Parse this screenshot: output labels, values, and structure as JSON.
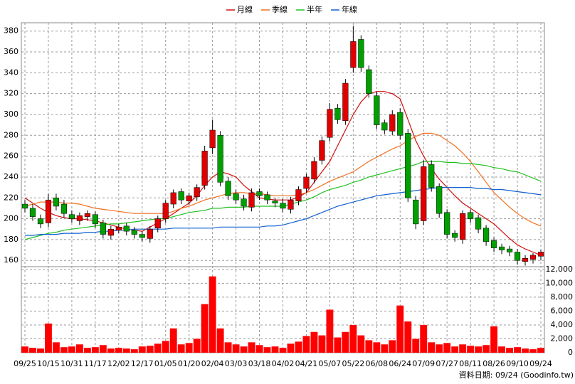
{
  "chart_data": {
    "type": "candlestick",
    "legend": "top",
    "grid": true,
    "up_color": "#e00000",
    "down_color": "#00a000",
    "wick_color": "#000000",
    "footer": "資料日期: 09/24 (Goodinfo.tw)",
    "xlim": [
      0,
      66
    ],
    "xticks": [
      {
        "value": 0,
        "label": "09/25"
      },
      {
        "value": 3,
        "label": "10/15"
      },
      {
        "value": 6,
        "label": "10/31"
      },
      {
        "value": 9,
        "label": "11/17"
      },
      {
        "value": 12,
        "label": "12/02"
      },
      {
        "value": 15,
        "label": "12/17"
      },
      {
        "value": 18,
        "label": "01/05"
      },
      {
        "value": 21,
        "label": "01/20"
      },
      {
        "value": 24,
        "label": "02/04"
      },
      {
        "value": 27,
        "label": "03/03"
      },
      {
        "value": 30,
        "label": "03/18"
      },
      {
        "value": 33,
        "label": "04/02"
      },
      {
        "value": 36,
        "label": "04/21"
      },
      {
        "value": 39,
        "label": "05/07"
      },
      {
        "value": 42,
        "label": "05/22"
      },
      {
        "value": 45,
        "label": "06/08"
      },
      {
        "value": 48,
        "label": "06/24"
      },
      {
        "value": 51,
        "label": "07/09"
      },
      {
        "value": 54,
        "label": "07/27"
      },
      {
        "value": 57,
        "label": "08/11"
      },
      {
        "value": 60,
        "label": "08/26"
      },
      {
        "value": 63,
        "label": "09/10"
      },
      {
        "value": 66,
        "label": "09/24"
      }
    ],
    "ylim": [
      154,
      388
    ],
    "yticks": [
      160,
      180,
      200,
      220,
      240,
      260,
      280,
      300,
      320,
      340,
      360,
      380
    ],
    "open": [
      214,
      210,
      200,
      196,
      220,
      214,
      204,
      198,
      202,
      204,
      196,
      184,
      189,
      193,
      189,
      185,
      181,
      191,
      200,
      214,
      226,
      217,
      221,
      232,
      268,
      280,
      236,
      224,
      219,
      211,
      226,
      223,
      217,
      215,
      209,
      217,
      229,
      238,
      256,
      278,
      306,
      294,
      345,
      372,
      343,
      318,
      292,
      284,
      302,
      282,
      218,
      198,
      252,
      231,
      206,
      186,
      180,
      206,
      201,
      191,
      179,
      173,
      171,
      168,
      159,
      161,
      164
    ],
    "high": [
      218,
      214,
      204,
      224,
      224,
      218,
      208,
      206,
      208,
      207,
      199,
      193,
      195,
      196,
      192,
      188,
      193,
      203,
      218,
      228,
      229,
      225,
      233,
      270,
      295,
      284,
      240,
      228,
      223,
      229,
      229,
      226,
      220,
      219,
      221,
      231,
      243,
      259,
      279,
      311,
      310,
      334,
      385,
      376,
      347,
      322,
      295,
      304,
      306,
      286,
      222,
      256,
      256,
      234,
      209,
      189,
      208,
      209,
      204,
      194,
      182,
      176,
      174,
      171,
      165,
      167,
      170
    ],
    "low": [
      206,
      198,
      191,
      192,
      208,
      201,
      196,
      194,
      198,
      191,
      181,
      180,
      186,
      184,
      181,
      178,
      177,
      187,
      196,
      210,
      214,
      213,
      217,
      228,
      262,
      231,
      218,
      214,
      208,
      207,
      218,
      214,
      211,
      206,
      205,
      213,
      225,
      234,
      252,
      274,
      291,
      290,
      340,
      341,
      316,
      286,
      281,
      280,
      276,
      216,
      190,
      194,
      226,
      201,
      181,
      178,
      176,
      196,
      186,
      174,
      168,
      166,
      164,
      156,
      155,
      157,
      160
    ],
    "close": [
      210,
      202,
      195,
      218,
      212,
      205,
      200,
      203,
      205,
      195,
      185,
      190,
      192,
      188,
      185,
      182,
      190,
      200,
      215,
      225,
      218,
      222,
      230,
      265,
      285,
      235,
      222,
      218,
      212,
      225,
      222,
      218,
      215,
      210,
      218,
      228,
      240,
      255,
      275,
      305,
      295,
      330,
      370,
      345,
      320,
      290,
      285,
      300,
      280,
      220,
      195,
      250,
      230,
      205,
      185,
      182,
      205,
      200,
      190,
      178,
      172,
      170,
      168,
      160,
      162,
      165,
      168
    ],
    "lines": [
      {
        "name": "月線",
        "color": "#d01010",
        "values": [
          220,
          215,
          210,
          206,
          203,
          201,
          200,
          200,
          199,
          198,
          196,
          194,
          192,
          190,
          189,
          188,
          192,
          196,
          200,
          205,
          210,
          215,
          222,
          232,
          240,
          245,
          243,
          240,
          232,
          226,
          220,
          219,
          218,
          218,
          218,
          221,
          225,
          235,
          245,
          255,
          270,
          285,
          300,
          312,
          320,
          322,
          322,
          320,
          315,
          295,
          275,
          260,
          248,
          238,
          230,
          222,
          215,
          210,
          205,
          200,
          195,
          188,
          181,
          175,
          171,
          168,
          165
        ]
      },
      {
        "name": "季線",
        "color": "#f07020",
        "values": [
          212,
          214,
          216,
          216,
          216,
          215,
          215,
          214,
          212,
          210,
          209,
          208,
          207,
          206,
          205,
          205,
          205,
          205,
          205,
          207,
          210,
          212,
          215,
          218,
          220,
          222,
          224,
          225,
          225,
          224,
          224,
          223,
          222,
          222,
          222,
          223,
          225,
          228,
          232,
          236,
          239,
          242,
          245,
          250,
          255,
          259,
          263,
          267,
          270,
          275,
          279,
          282,
          282,
          280,
          275,
          270,
          263,
          255,
          245,
          235,
          225,
          218,
          211,
          205,
          200,
          196,
          193
        ]
      },
      {
        "name": "半年",
        "color": "#20c020",
        "values": [
          180,
          182,
          184,
          186,
          187,
          189,
          190,
          191,
          192,
          193,
          194,
          195,
          195,
          196,
          197,
          198,
          199,
          200,
          200,
          202,
          204,
          206,
          207,
          208,
          210,
          210,
          211,
          211,
          211,
          212,
          212,
          212,
          212,
          212,
          214,
          216,
          218,
          221,
          225,
          228,
          230,
          232,
          235,
          237,
          240,
          242,
          244,
          246,
          248,
          250,
          252,
          255,
          255,
          255,
          254,
          254,
          253,
          253,
          252,
          251,
          249,
          248,
          246,
          245,
          242,
          239,
          236
        ]
      },
      {
        "name": "年線",
        "color": "#1060d0",
        "values": [
          184,
          184,
          185,
          185,
          185,
          186,
          186,
          186,
          187,
          187,
          188,
          188,
          189,
          189,
          190,
          190,
          190,
          190,
          190,
          191,
          191,
          191,
          191,
          191,
          191,
          192,
          192,
          192,
          192,
          192,
          192,
          193,
          193,
          194,
          196,
          198,
          200,
          203,
          206,
          209,
          212,
          214,
          216,
          218,
          220,
          222,
          223,
          224,
          225,
          226,
          227,
          228,
          229,
          230,
          230,
          230,
          230,
          230,
          229,
          229,
          228,
          228,
          227,
          226,
          225,
          224,
          223
        ]
      }
    ],
    "volume": {
      "color": "#ff0000",
      "ylim": [
        0,
        12400
      ],
      "yticks": [
        0,
        {
          "value": 2000,
          "label": "2,000"
        },
        {
          "value": 4000,
          "label": "4,000"
        },
        {
          "value": 6000,
          "label": "6,000"
        },
        {
          "value": 8000,
          "label": "8,000"
        },
        {
          "value": 10000,
          "label": "10,000"
        },
        {
          "value": 12000,
          "label": "12,000"
        }
      ],
      "values": [
        900,
        700,
        600,
        4200,
        1500,
        800,
        900,
        1200,
        700,
        800,
        1100,
        600,
        700,
        600,
        500,
        900,
        1000,
        1300,
        1700,
        3500,
        1200,
        1400,
        2000,
        7000,
        11000,
        3500,
        1500,
        1200,
        900,
        1500,
        1100,
        800,
        900,
        700,
        1300,
        1600,
        2400,
        3000,
        2500,
        6200,
        2200,
        3000,
        4000,
        2500,
        1800,
        1500,
        1200,
        1800,
        6800,
        4500,
        2000,
        4000,
        1500,
        1200,
        1400,
        900,
        1200,
        1000,
        900,
        1100,
        3800,
        900,
        700,
        800,
        600,
        500,
        700
      ]
    }
  }
}
